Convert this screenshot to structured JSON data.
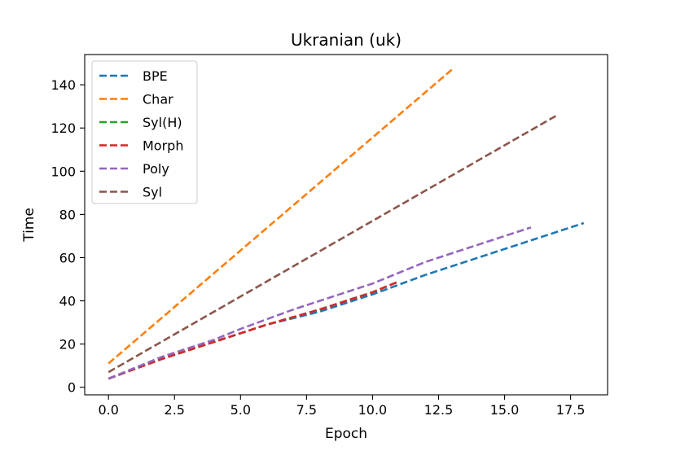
{
  "chart_data": {
    "type": "line",
    "title": "Ukranian (uk)",
    "xlabel": "Epoch",
    "ylabel": "Time",
    "xlim": [
      -0.9,
      18.9
    ],
    "ylim": [
      -3.5,
      154
    ],
    "xticks": [
      0.0,
      2.5,
      5.0,
      7.5,
      10.0,
      12.5,
      15.0,
      17.5
    ],
    "xtick_labels": [
      "0.0",
      "2.5",
      "5.0",
      "7.5",
      "10.0",
      "12.5",
      "15.0",
      "17.5"
    ],
    "yticks": [
      0,
      20,
      40,
      60,
      80,
      100,
      120,
      140
    ],
    "ytick_labels": [
      "0",
      "20",
      "40",
      "60",
      "80",
      "100",
      "120",
      "140"
    ],
    "grid": false,
    "legend_position": "top-left",
    "line_style": "dashed",
    "series": [
      {
        "name": "BPE",
        "color": "#1f77b4",
        "x": [
          0,
          2,
          4,
          6,
          8,
          10,
          12,
          14,
          16,
          18
        ],
        "y": [
          4,
          13,
          21,
          29,
          35,
          43,
          52,
          60,
          68,
          76
        ]
      },
      {
        "name": "Char",
        "color": "#ff7f0e",
        "x": [
          0,
          13
        ],
        "y": [
          11,
          147
        ]
      },
      {
        "name": "Syl(H)",
        "color": "#2ca02c",
        "x": [
          0,
          2,
          4,
          6,
          8,
          10,
          11
        ],
        "y": [
          4,
          13,
          21,
          29,
          36,
          44,
          49
        ]
      },
      {
        "name": "Morph",
        "color": "#d62728",
        "x": [
          0,
          2,
          4,
          6,
          8,
          10,
          11
        ],
        "y": [
          4,
          13,
          21,
          29,
          36,
          44,
          49
        ]
      },
      {
        "name": "Poly",
        "color": "#9467bd",
        "x": [
          0,
          2,
          4,
          5,
          7,
          10,
          12,
          14,
          16
        ],
        "y": [
          4,
          14,
          22,
          27,
          36,
          48,
          58,
          66,
          74
        ]
      },
      {
        "name": "Syl",
        "color": "#8c564b",
        "x": [
          0,
          17
        ],
        "y": [
          7,
          126
        ]
      }
    ]
  }
}
